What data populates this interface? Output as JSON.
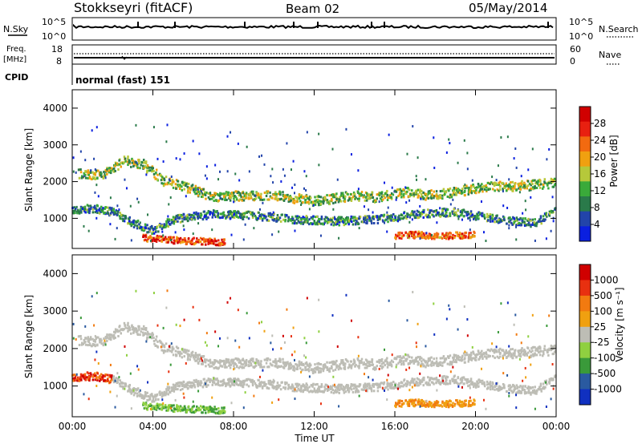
{
  "header": {
    "station": "Stokkseyri (fitACF)",
    "beam": "Beam 02",
    "date": "05/May/2014"
  },
  "aux_panels": {
    "nsky_label": "N.Sky",
    "nsky_ticks": [
      "10^5",
      "10^0"
    ],
    "nsearch_label": "N.Search",
    "freq_label_1": "Freq.",
    "freq_label_2": "[MHz]",
    "freq_ticks": [
      "18",
      "8"
    ],
    "nave_label": "Nave",
    "nave_ticks": [
      "60",
      "0"
    ],
    "cpid_label": "CPID",
    "cpid_value": "normal (fast) 151"
  },
  "chart_data": [
    {
      "type": "heatmap",
      "panel": "power",
      "ylabel": "Slant Range [km]",
      "ylim": [
        180,
        4500
      ],
      "yticks": [
        1000,
        2000,
        3000,
        4000
      ],
      "xlim_hours": [
        0,
        24
      ],
      "colorbar": {
        "label": "Power [dB]",
        "ticks": [
          "28",
          "24",
          "20",
          "16",
          "12",
          "8",
          "4"
        ],
        "range": [
          0,
          32
        ],
        "colors": [
          "#0a1fe0",
          "#2244aa",
          "#2a7a4a",
          "#3aaa3a",
          "#b6c83a",
          "#f0a010",
          "#f26a10",
          "#e82010",
          "#d00000"
        ]
      },
      "echo_bands": [
        {
          "name": "ionospheric-F",
          "points": [
            [
              0.3,
              2250
            ],
            [
              1.5,
              2200
            ],
            [
              2.5,
              2600
            ],
            [
              3.5,
              2500
            ],
            [
              4.5,
              2050
            ],
            [
              5.5,
              1900
            ],
            [
              7,
              1600
            ],
            [
              8.5,
              1650
            ],
            [
              10,
              1650
            ],
            [
              12,
              1500
            ],
            [
              14,
              1650
            ],
            [
              15,
              1600
            ],
            [
              16.5,
              1750
            ],
            [
              17.5,
              1650
            ],
            [
              19,
              1750
            ],
            [
              20.5,
              1900
            ],
            [
              22,
              1900
            ],
            [
              24,
              2000
            ]
          ],
          "level": 14
        },
        {
          "name": "ionospheric-E",
          "points": [
            [
              0,
              1250
            ],
            [
              1,
              1300
            ],
            [
              2,
              1200
            ],
            [
              3,
              900
            ],
            [
              4,
              700
            ],
            [
              5,
              1000
            ],
            [
              7,
              1150
            ],
            [
              9,
              1100
            ],
            [
              11,
              1000
            ],
            [
              13,
              950
            ],
            [
              15,
              1000
            ],
            [
              17,
              1150
            ],
            [
              19,
              1200
            ],
            [
              21,
              1000
            ],
            [
              23,
              900
            ],
            [
              24,
              1300
            ]
          ],
          "level": 9
        },
        {
          "name": "near-range",
          "points": [
            [
              3.5,
              500
            ],
            [
              4.5,
              450
            ],
            [
              5.5,
              420
            ],
            [
              6.5,
              400
            ],
            [
              7.5,
              380
            ]
          ],
          "level": 26
        },
        {
          "name": "sea-scatter",
          "points": [
            [
              16,
              560
            ],
            [
              17,
              580
            ],
            [
              18,
              560
            ],
            [
              19,
              560
            ],
            [
              20,
              600
            ]
          ],
          "level": 24
        }
      ]
    },
    {
      "type": "heatmap",
      "panel": "velocity",
      "ylabel": "Slant Range [km]",
      "xlabel": "Time UT",
      "ylim": [
        180,
        4500
      ],
      "yticks": [
        1000,
        2000,
        3000,
        4000
      ],
      "xlim_hours": [
        0,
        24
      ],
      "xticks": [
        "00:00",
        "04:00",
        "08:00",
        "12:00",
        "16:00",
        "20:00",
        "00:00"
      ],
      "colorbar": {
        "label": "Velocity [m s⁻¹]",
        "ticks": [
          "1000",
          "500",
          "100",
          "25",
          "-25",
          "-100",
          "-500",
          "-1000"
        ],
        "colors": [
          "#1030c0",
          "#2a5aa0",
          "#3a9a3a",
          "#8fd040",
          "#bdbdb5",
          "#f0a010",
          "#f27a10",
          "#e83010",
          "#d00000"
        ]
      }
    }
  ]
}
